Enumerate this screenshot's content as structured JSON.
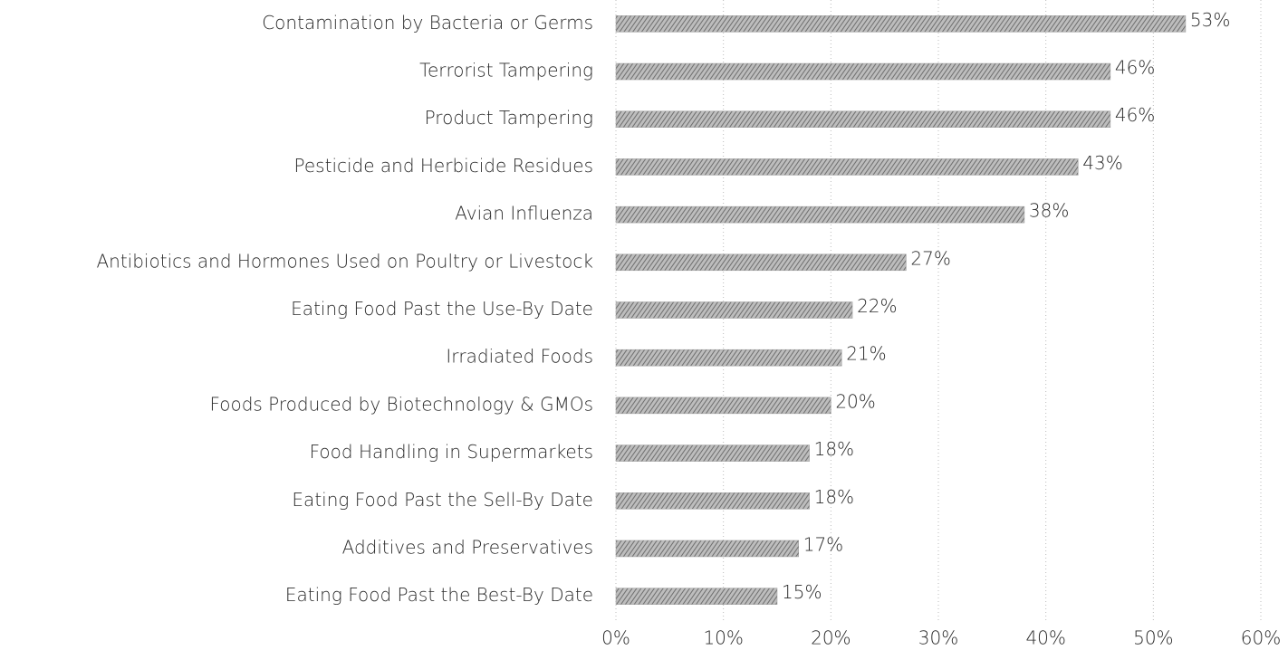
{
  "chart_data": {
    "type": "barh",
    "categories": [
      "Contamination by Bacteria or Germs",
      "Terrorist Tampering",
      "Product Tampering",
      "Pesticide and Herbicide Residues",
      "Avian Influenza",
      "Antibiotics and Hormones Used on Poultry or Livestock",
      "Eating Food Past the Use-By Date",
      "Irradiated Foods",
      "Foods Produced by Biotechnology & GMOs",
      "Food Handling in Supermarkets",
      "Eating Food Past the Sell-By Date",
      "Additives and Preservatives",
      "Eating Food Past the Best-By Date"
    ],
    "values": [
      53,
      46,
      46,
      43,
      38,
      27,
      22,
      21,
      20,
      18,
      18,
      17,
      15
    ],
    "value_labels": [
      "53%",
      "46%",
      "46%",
      "43%",
      "38%",
      "27%",
      "22%",
      "21%",
      "20%",
      "18%",
      "18%",
      "17%",
      "15%"
    ],
    "color": "#9a9a9a",
    "xlim": [
      0,
      60
    ],
    "xticks": [
      {
        "value": 0,
        "label": "0%"
      },
      {
        "value": 10,
        "label": "10%"
      },
      {
        "value": 20,
        "label": "20%"
      },
      {
        "value": 30,
        "label": "30%"
      },
      {
        "value": 40,
        "label": "40%"
      },
      {
        "value": 50,
        "label": "50%"
      },
      {
        "value": 60,
        "label": "60%"
      }
    ],
    "grid": true
  }
}
